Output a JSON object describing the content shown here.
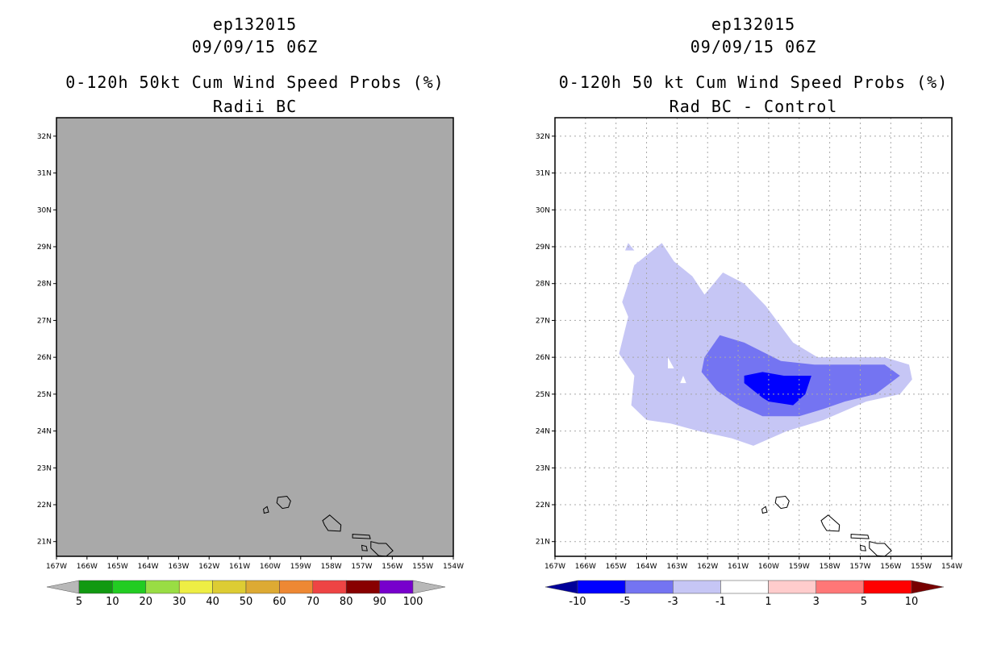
{
  "left": {
    "storm": "ep132015",
    "datetime": "09/09/15 06Z",
    "title": "0-120h 50kt Cum Wind Speed Probs (%)",
    "subtitle": "Radii BC"
  },
  "right": {
    "storm": "ep132015",
    "datetime": "09/09/15 06Z",
    "title": "0-120h 50 kt Cum Wind Speed Probs (%)",
    "subtitle": "Rad BC - Control"
  },
  "colors": {
    "panel_fill": "#a9a9a9",
    "coast": "#000000"
  },
  "chart_data": [
    {
      "type": "heatmap",
      "title": "0-120h 50kt Cum Wind Speed Probs (%)",
      "subtitle": "Radii BC",
      "xlim": [
        -167,
        -154
      ],
      "ylim": [
        20.6,
        32.5
      ],
      "x_ticks": [
        "167W",
        "166W",
        "165W",
        "164W",
        "163W",
        "162W",
        "161W",
        "160W",
        "159W",
        "158W",
        "157W",
        "156W",
        "155W",
        "154W"
      ],
      "y_ticks": [
        "21N",
        "22N",
        "23N",
        "24N",
        "25N",
        "26N",
        "27N",
        "28N",
        "29N",
        "30N",
        "31N",
        "32N"
      ],
      "field": "no probabilities >= 5% (uniform gray)",
      "colorbar": {
        "labels": [
          "5",
          "10",
          "20",
          "30",
          "40",
          "50",
          "60",
          "70",
          "80",
          "90",
          "100"
        ],
        "colors": [
          "#119911",
          "#22cc22",
          "#99dd44",
          "#eeee44",
          "#ddcc33",
          "#ddaa33",
          "#ee8833",
          "#ee4444",
          "#880000",
          "#7700cc"
        ],
        "under_color": "#b8b8b8",
        "over_color": "#b8b8b8"
      }
    },
    {
      "type": "heatmap",
      "title": "0-120h 50 kt Cum Wind Speed Probs (%)",
      "subtitle": "Rad BC - Control",
      "xlim": [
        -167,
        -154
      ],
      "ylim": [
        20.6,
        32.5
      ],
      "x_ticks": [
        "167W",
        "166W",
        "165W",
        "164W",
        "163W",
        "162W",
        "161W",
        "160W",
        "159W",
        "158W",
        "157W",
        "156W",
        "155W",
        "154W"
      ],
      "y_ticks": [
        "21N",
        "22N",
        "23N",
        "24N",
        "25N",
        "26N",
        "27N",
        "28N",
        "29N",
        "30N",
        "31N",
        "32N"
      ],
      "grid": true,
      "contours": [
        {
          "level": "-1 to -3",
          "color": "#c6c6f5",
          "lon": [
            -164.8,
            -164.4,
            -163.5,
            -163.1,
            -162.5,
            -162.1,
            -161.5,
            -160.8,
            -160.1,
            -159.2,
            -158.4,
            -157.3,
            -156.2,
            -155.4,
            -155.3,
            -155.7,
            -156.8,
            -158.2,
            -159.4,
            -160.5,
            -161.2,
            -162.3,
            -163.2,
            -164,
            -164.5,
            -164.4,
            -164.9,
            -164.6
          ],
          "lat": [
            27.5,
            28.5,
            29.1,
            28.6,
            28.2,
            27.7,
            28.3,
            28.0,
            27.4,
            26.4,
            26.0,
            26.0,
            26.0,
            25.8,
            25.4,
            25.0,
            24.8,
            24.3,
            24.0,
            23.6,
            23.8,
            24.0,
            24.2,
            24.3,
            24.7,
            25.5,
            26.1,
            27.1
          ]
        },
        {
          "level": "-1 to -3",
          "color": "#c6c6f5",
          "lon": [
            -164.3,
            -164.1,
            -164.5
          ],
          "lat": [
            28.6,
            28.2,
            28.2
          ]
        },
        {
          "level": "-1 to -3",
          "color": "#c6c6f5",
          "lon": [
            -164.6,
            -164.4,
            -164.7
          ],
          "lat": [
            29.1,
            28.9,
            28.9
          ]
        },
        {
          "level": "-3 to -5",
          "color": "#7474f2",
          "lon": [
            -162.1,
            -161.6,
            -160.8,
            -159.6,
            -158.5,
            -157.4,
            -156.2,
            -155.7,
            -156.5,
            -157.5,
            -158.2,
            -159.0,
            -160.2,
            -161.0,
            -161.7,
            -162.2
          ],
          "lat": [
            26.0,
            26.6,
            26.4,
            25.9,
            25.8,
            25.8,
            25.8,
            25.5,
            25.0,
            24.8,
            24.6,
            24.4,
            24.4,
            24.7,
            25.1,
            25.6
          ]
        },
        {
          "level": "-5 to -10",
          "color": "#0000ff",
          "lon": [
            -160.8,
            -160.2,
            -159.5,
            -158.6,
            -158.8,
            -159.2,
            -160.0,
            -160.2,
            -160.8
          ],
          "lat": [
            25.5,
            25.6,
            25.5,
            25.5,
            25.0,
            24.7,
            24.8,
            24.9,
            25.3
          ]
        }
      ],
      "holes": [
        {
          "lon": [
            -162.8,
            -162.7,
            -162.9
          ],
          "lat": [
            25.5,
            25.3,
            25.3
          ]
        },
        {
          "lon": [
            -163.3,
            -163.1,
            -163.3
          ],
          "lat": [
            26.0,
            25.7,
            25.7
          ]
        }
      ],
      "colorbar": {
        "labels": [
          "-10",
          "-5",
          "-3",
          "-1",
          "1",
          "3",
          "5",
          "10"
        ],
        "colors": [
          "#0000ff",
          "#7474f2",
          "#c6c6f5",
          "#ffffff",
          "#ffcccc",
          "#ff7777",
          "#ff0000"
        ],
        "under_color": "#000099",
        "over_color": "#770000"
      }
    }
  ]
}
